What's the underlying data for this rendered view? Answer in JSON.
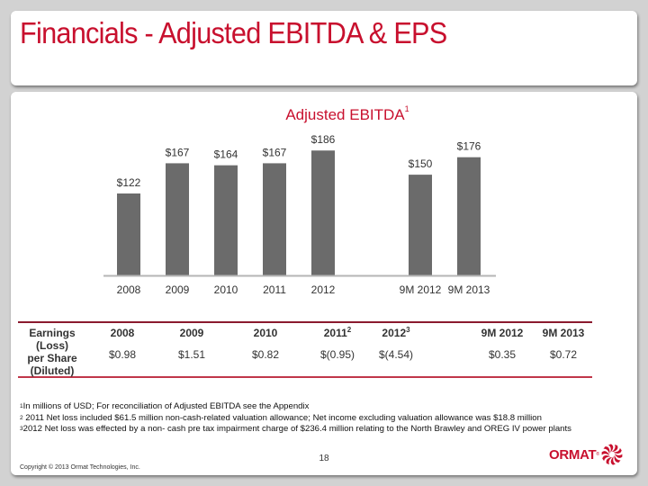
{
  "slide": {
    "title": "Financials - Adjusted EBITDA & EPS",
    "page_number": "18",
    "copyright": "Copyright © 2013 Ormat Technologies, Inc.",
    "logo_text": "ORMAT",
    "logo_reg": "®"
  },
  "chart_data": {
    "type": "bar",
    "title": "Adjusted EBITDA",
    "title_footnote": "1",
    "categories": [
      "2008",
      "2009",
      "2010",
      "2011",
      "2012",
      "9M 2012",
      "9M 2013"
    ],
    "values": [
      122,
      167,
      164,
      167,
      186,
      150,
      176
    ],
    "data_labels": [
      "$122",
      "$167",
      "$164",
      "$167",
      "$186",
      "$150",
      "$176"
    ],
    "xlabel": "",
    "ylabel": "",
    "units": "millions of USD",
    "ylim": [
      0,
      200
    ],
    "grid": false,
    "legend": "none",
    "bar_color": "#6b6b6b"
  },
  "eps_table": {
    "row_label_lines": [
      "Earnings",
      "(Loss)",
      "per Share",
      "(Diluted)"
    ],
    "columns": [
      {
        "header": "2008",
        "sup": "",
        "value": "$0.98"
      },
      {
        "header": "2009",
        "sup": "",
        "value": "$1.51"
      },
      {
        "header": "2010",
        "sup": "",
        "value": "$0.82"
      },
      {
        "header": "2011",
        "sup": "2",
        "value": "$(0.95)"
      },
      {
        "header": "2012",
        "sup": "3",
        "value": "$(4.54)"
      },
      {
        "header": "9M 2012",
        "sup": "",
        "value": "$0.35"
      },
      {
        "header": "9M 2013",
        "sup": "",
        "value": "$0.72"
      }
    ]
  },
  "footnotes": [
    {
      "mark": "1",
      "text": "In millions of USD; For reconciliation of Adjusted EBITDA see the Appendix"
    },
    {
      "mark": "2",
      "text": " 2011 Net loss included $61.5 million non-cash-related valuation allowance; Net income excluding valuation allowance was $18.8 million"
    },
    {
      "mark": "3",
      "text": "2012 Net loss was effected by a non- cash pre tax impairment charge of $236.4 million relating to the North Brawley and OREG IV power plants"
    }
  ]
}
